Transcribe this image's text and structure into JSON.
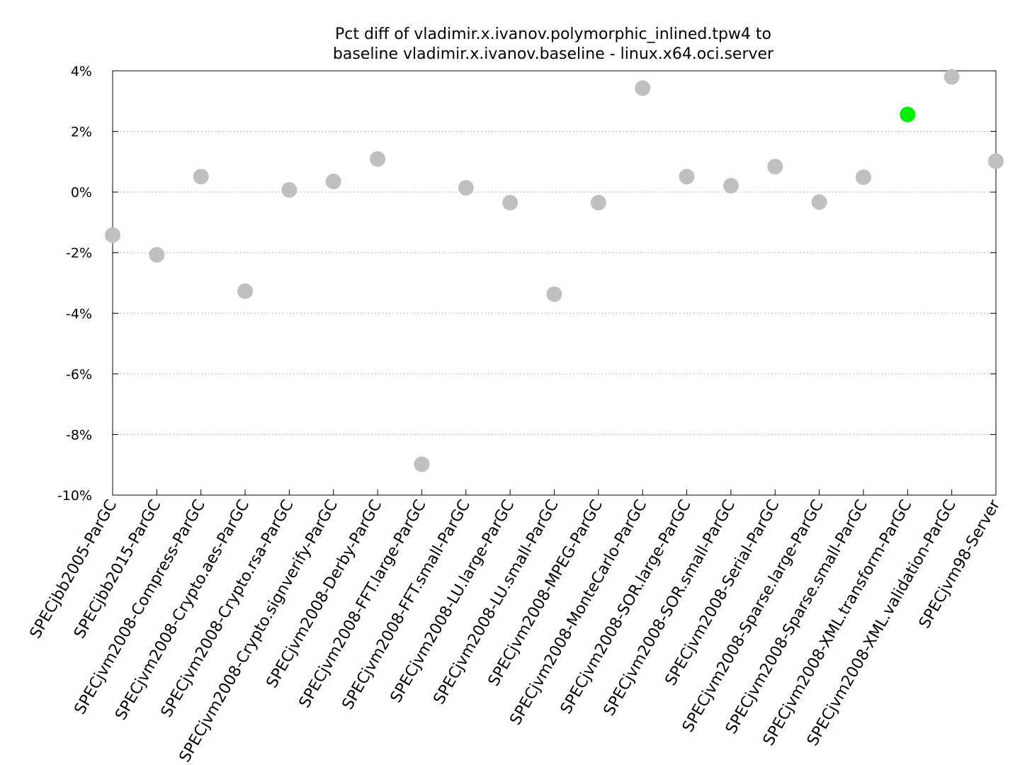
{
  "chart_data": {
    "type": "scatter",
    "title_lines": [
      "Pct diff of vladimir.x.ivanov.polymorphic_inlined.tpw4 to",
      "baseline vladimir.x.ivanov.baseline - linux.x64.oci.server"
    ],
    "xlabel": "",
    "ylabel": "",
    "ylim": [
      -10,
      4
    ],
    "yticks": [
      4,
      2,
      0,
      -2,
      -4,
      -6,
      -8,
      -10
    ],
    "ytick_labels": [
      "4%",
      "2%",
      "0%",
      "-2%",
      "-4%",
      "-6%",
      "-8%",
      "-10%"
    ],
    "grid": "horizontal dotted",
    "legend": "none",
    "colors": {
      "default_point": "#c0c0c0",
      "highlight_point": "#00ee00"
    },
    "categories": [
      "SPECjbb2005-ParGC",
      "SPECjbb2015-ParGC",
      "SPECjvm2008-Compress-ParGC",
      "SPECjvm2008-Crypto.aes-ParGC",
      "SPECjvm2008-Crypto.rsa-ParGC",
      "SPECjvm2008-Crypto.signverify-ParGC",
      "SPECjvm2008-Derby-ParGC",
      "SPECjvm2008-FFT.large-ParGC",
      "SPECjvm2008-FFT.small-ParGC",
      "SPECjvm2008-LU.large-ParGC",
      "SPECjvm2008-LU.small-ParGC",
      "SPECjvm2008-MPEG-ParGC",
      "SPECjvm2008-MonteCarlo-ParGC",
      "SPECjvm2008-SOR.large-ParGC",
      "SPECjvm2008-SOR.small-ParGC",
      "SPECjvm2008-Serial-ParGC",
      "SPECjvm2008-Sparse.large-ParGC",
      "SPECjvm2008-Sparse.small-ParGC",
      "SPECjvm2008-XML.transform-ParGC",
      "SPECjvm2008-XML.validation-ParGC",
      "SPECjvm98-Server"
    ],
    "values": [
      -1.42,
      -2.07,
      0.51,
      -3.27,
      0.07,
      0.35,
      1.09,
      -8.98,
      0.14,
      -0.35,
      -3.37,
      -0.35,
      3.43,
      0.51,
      0.21,
      0.84,
      -0.33,
      0.49,
      2.56,
      3.8,
      1.02
    ],
    "highlight": [
      false,
      false,
      false,
      false,
      false,
      false,
      false,
      false,
      false,
      false,
      false,
      false,
      false,
      false,
      false,
      false,
      false,
      false,
      true,
      false,
      false
    ]
  }
}
